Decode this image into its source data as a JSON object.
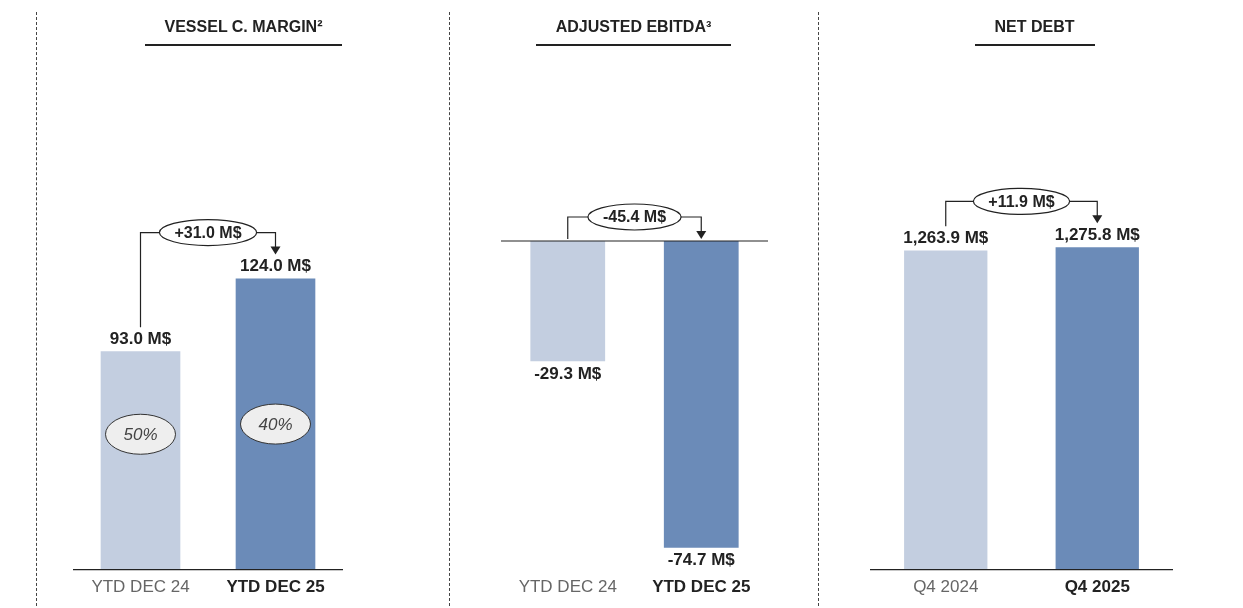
{
  "chart_data": [
    {
      "type": "bar",
      "title": "VESSEL C. MARGIN²",
      "categories": [
        "YTD DEC 24",
        "YTD DEC 25"
      ],
      "values": [
        93.0,
        124.0
      ],
      "colors": [
        "#c3cee0",
        "#6b8bb8"
      ],
      "value_labels": [
        "93.0 M$",
        "124.0 M$"
      ],
      "tick_labels": "x",
      "annotations": [
        "+31.0 M$",
        "50%",
        "40%"
      ]
    },
    {
      "type": "bar",
      "title": "ADJUSTED EBITDA³",
      "categories": [
        "YTD DEC 24",
        "YTD DEC 25"
      ],
      "values": [
        -29.3,
        -74.7
      ],
      "colors": [
        "#c3cee0",
        "#6b8bb8"
      ],
      "value_labels": [
        "-29.3 M$",
        "-74.7 M$"
      ],
      "tick_labels": "x",
      "annotations": [
        "-45.4 M$"
      ]
    },
    {
      "type": "bar",
      "title": "NET DEBT",
      "categories": [
        "Q4 2024",
        "Q4 2025"
      ],
      "values": [
        1263.9,
        1275.8
      ],
      "colors": [
        "#c3cee0",
        "#6b8bb8"
      ],
      "value_labels": [
        "1,263.9 M$",
        "1,275.8 M$"
      ],
      "tick_labels": "x",
      "annotations": [
        "+11.9 M$"
      ]
    }
  ]
}
